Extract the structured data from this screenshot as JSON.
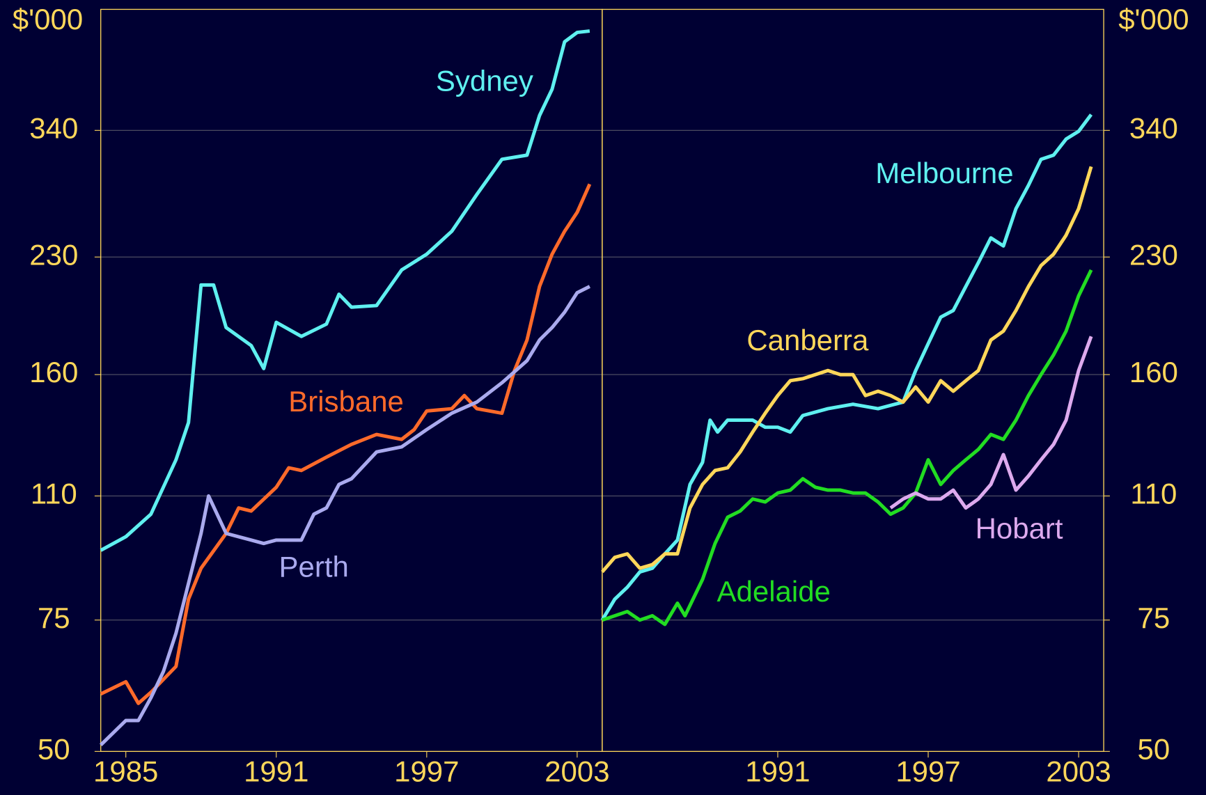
{
  "chart_data": [
    {
      "type": "line",
      "y_label": "$'000",
      "log_y": true,
      "grid": true,
      "ylim": [
        50,
        494
      ],
      "yticks": [
        50,
        75,
        110,
        160,
        230,
        340
      ],
      "xlim": [
        1984,
        2004
      ],
      "xticks": [
        1985,
        1991,
        1997,
        2003
      ],
      "axis_side": "left",
      "series": [
        {
          "name": "Sydney",
          "color": "#5ff0f0",
          "x": [
            1984,
            1985,
            1986,
            1987,
            1987.5,
            1988,
            1988.5,
            1989,
            1990,
            1990.5,
            1991,
            1992,
            1993,
            1993.5,
            1994,
            1995,
            1996,
            1997,
            1998,
            1999,
            2000,
            2001,
            2001.5,
            2002,
            2002.5,
            2003,
            2003.5
          ],
          "values": [
            93,
            97,
            104,
            123,
            138,
            211,
            211,
            185,
            175,
            163,
            188,
            180,
            187,
            205,
            197,
            198,
            221,
            232,
            249,
            279,
            311,
            315,
            356,
            386,
            447,
            460,
            462
          ]
        },
        {
          "name": "Brisbane",
          "color": "#ff6a2a",
          "x": [
            1984,
            1985,
            1985.5,
            1986,
            1987,
            1987.5,
            1988,
            1989,
            1989.5,
            1990,
            1991,
            1991.5,
            1992,
            1993,
            1994,
            1995,
            1996,
            1996.5,
            1997,
            1998,
            1998.5,
            1999,
            2000,
            2000.5,
            2001,
            2001.5,
            2002,
            2002.5,
            2003,
            2003.5
          ],
          "values": [
            59.7,
            62,
            58,
            60,
            65,
            80,
            88,
            98,
            106,
            105,
            113,
            120,
            119,
            124,
            129,
            133,
            131,
            135,
            143,
            144,
            150,
            144,
            142,
            162,
            178,
            210,
            232,
            249,
            264,
            288
          ]
        },
        {
          "name": "Perth",
          "color": "#aaaaee",
          "x": [
            1984,
            1985,
            1985.5,
            1986,
            1986.5,
            1987,
            1987.5,
            1988,
            1988.3,
            1989,
            1990,
            1990.5,
            1991,
            1992,
            1992.5,
            1993,
            1993.5,
            1994,
            1995,
            1995.5,
            1996,
            1997,
            1998,
            1999,
            2000,
            2001,
            2001.5,
            2002,
            2002.5,
            2003,
            2003.5
          ],
          "values": [
            51,
            55,
            55,
            59,
            64,
            72,
            84,
            98,
            110,
            98,
            96,
            95,
            96,
            96,
            104,
            106,
            114,
            116,
            126,
            127,
            128,
            135,
            142,
            147,
            156,
            167,
            178,
            185,
            194,
            206,
            210
          ]
        }
      ]
    },
    {
      "type": "line",
      "y_label": "$'000",
      "log_y": true,
      "grid": true,
      "ylim": [
        50,
        494
      ],
      "yticks": [
        50,
        75,
        110,
        160,
        230,
        340
      ],
      "xlim": [
        1984,
        2004
      ],
      "xticks": [
        1991,
        1997,
        2003
      ],
      "axis_side": "right",
      "series": [
        {
          "name": "Melbourne",
          "color": "#5ff0f0",
          "x": [
            1984,
            1984.5,
            1985,
            1985.5,
            1986,
            1986.5,
            1987,
            1987.5,
            1988,
            1988.3,
            1988.6,
            1989,
            1990,
            1990.5,
            1991,
            1991.5,
            1992,
            1993,
            1994,
            1995,
            1996,
            1996.5,
            1997,
            1997.5,
            1998,
            1998.5,
            1999,
            1999.5,
            2000,
            2000.5,
            2001,
            2001.5,
            2002,
            2002.5,
            2003,
            2003.5
          ],
          "values": [
            75,
            80,
            83,
            87,
            88,
            92,
            96,
            114,
            122,
            139,
            134,
            139,
            139,
            136,
            136,
            134,
            141,
            144,
            146,
            144,
            147,
            162,
            176,
            191,
            195,
            210,
            226,
            244,
            238,
            267,
            287,
            311,
            315,
            331,
            339,
            357
          ]
        },
        {
          "name": "Canberra",
          "color": "#ffd75a",
          "x": [
            1984,
            1984.5,
            1985,
            1985.5,
            1986,
            1986.5,
            1987,
            1987.5,
            1988,
            1988.5,
            1989,
            1989.5,
            1990,
            1990.5,
            1991,
            1991.5,
            1992,
            1992.5,
            1993,
            1993.5,
            1994,
            1994.5,
            1995,
            1995.5,
            1996,
            1996.5,
            1997,
            1997.5,
            1998,
            1998.5,
            1999,
            1999.5,
            2000,
            2000.5,
            2001,
            2001.5,
            2002,
            2002.5,
            2003,
            2003.5
          ],
          "values": [
            87,
            91,
            92,
            88,
            89,
            92,
            92,
            106,
            114,
            119,
            120,
            126,
            134,
            142,
            150,
            157,
            158,
            160,
            162,
            160,
            160,
            150,
            152,
            150,
            147,
            154,
            147,
            157,
            152,
            157,
            162,
            178,
            183,
            195,
            210,
            224,
            232,
            246,
            267,
            304
          ]
        },
        {
          "name": "Adelaide",
          "color": "#22dd22",
          "x": [
            1984,
            1985,
            1985.5,
            1986,
            1986.5,
            1987,
            1987.3,
            1988,
            1988.5,
            1989,
            1989.5,
            1990,
            1990.5,
            1991,
            1991.5,
            1992,
            1992.5,
            1993,
            1993.5,
            1994,
            1994.5,
            1995,
            1995.5,
            1996,
            1996.5,
            1997,
            1997.5,
            1998,
            1998.5,
            1999,
            1999.5,
            2000,
            2000.5,
            2001,
            2001.5,
            2002,
            2002.5,
            2003,
            2003.5
          ],
          "values": [
            75,
            77,
            75,
            76,
            74,
            79,
            76,
            85,
            95,
            103,
            105,
            109,
            108,
            111,
            112,
            116,
            113,
            112,
            112,
            111,
            111,
            108,
            104,
            106,
            111,
            123,
            114,
            119,
            123,
            127,
            133,
            131,
            139,
            150,
            160,
            170,
            183,
            204,
            221
          ]
        },
        {
          "name": "Hobart",
          "color": "#ddaaee",
          "x": [
            1995.5,
            1996,
            1996.5,
            1997,
            1997.5,
            1998,
            1998.5,
            1999,
            1999.5,
            2000,
            2000.5,
            2001,
            2001.5,
            2002,
            2002.5,
            2003,
            2003.5
          ],
          "values": [
            106,
            109,
            111,
            109,
            109,
            112,
            106,
            109,
            114,
            125,
            112,
            117,
            123,
            129,
            139,
            162,
            180
          ]
        }
      ]
    }
  ]
}
